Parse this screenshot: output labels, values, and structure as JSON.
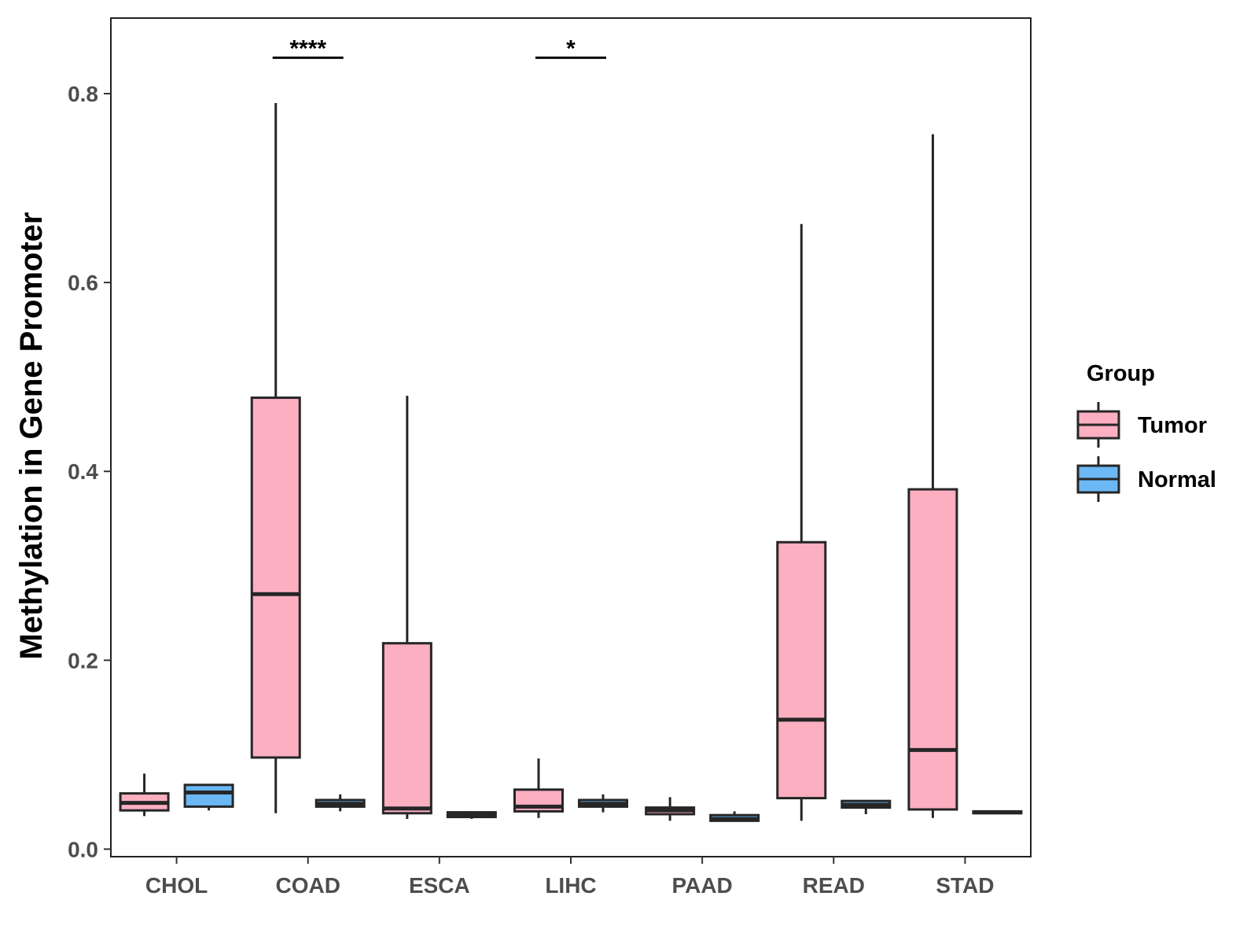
{
  "chart_data": {
    "type": "boxplot",
    "title": "",
    "xlabel": "",
    "ylabel": "Methylation in Gene Promoter",
    "ylim": [
      -0.008,
      0.88
    ],
    "yticks": [
      "0.0",
      "0.2",
      "0.4",
      "0.6",
      "0.8"
    ],
    "ytick_values": [
      0.0,
      0.2,
      0.4,
      0.6,
      0.8
    ],
    "categories": [
      "CHOL",
      "COAD",
      "ESCA",
      "LIHC",
      "PAAD",
      "READ",
      "STAD"
    ],
    "legend": {
      "title": "Group",
      "position": "right",
      "entries": [
        {
          "name": "Tumor",
          "color": "#fbafc1"
        },
        {
          "name": "Normal",
          "color": "#6bb8f5"
        }
      ]
    },
    "series": [
      {
        "name": "Tumor",
        "color": "#fbafc1",
        "boxes": [
          {
            "category": "CHOL",
            "min": 0.035,
            "q1": 0.041,
            "median": 0.049,
            "q3": 0.059,
            "max": 0.08
          },
          {
            "category": "COAD",
            "min": 0.038,
            "q1": 0.097,
            "median": 0.27,
            "q3": 0.478,
            "max": 0.79
          },
          {
            "category": "ESCA",
            "min": 0.032,
            "q1": 0.038,
            "median": 0.043,
            "q3": 0.218,
            "max": 0.48
          },
          {
            "category": "LIHC",
            "min": 0.033,
            "q1": 0.04,
            "median": 0.045,
            "q3": 0.063,
            "max": 0.096
          },
          {
            "category": "PAAD",
            "min": 0.03,
            "q1": 0.037,
            "median": 0.041,
            "q3": 0.044,
            "max": 0.055
          },
          {
            "category": "READ",
            "min": 0.03,
            "q1": 0.054,
            "median": 0.137,
            "q3": 0.325,
            "max": 0.662
          },
          {
            "category": "STAD",
            "min": 0.033,
            "q1": 0.042,
            "median": 0.105,
            "q3": 0.381,
            "max": 0.757
          }
        ]
      },
      {
        "name": "Normal",
        "color": "#6bb8f5",
        "boxes": [
          {
            "category": "CHOL",
            "min": 0.041,
            "q1": 0.045,
            "median": 0.06,
            "q3": 0.068,
            "max": 0.069
          },
          {
            "category": "COAD",
            "min": 0.04,
            "q1": 0.045,
            "median": 0.048,
            "q3": 0.052,
            "max": 0.058
          },
          {
            "category": "ESCA",
            "min": 0.032,
            "q1": 0.034,
            "median": 0.036,
            "q3": 0.039,
            "max": 0.04
          },
          {
            "category": "LIHC",
            "min": 0.039,
            "q1": 0.045,
            "median": 0.048,
            "q3": 0.052,
            "max": 0.058
          },
          {
            "category": "PAAD",
            "min": 0.029,
            "q1": 0.03,
            "median": 0.032,
            "q3": 0.036,
            "max": 0.04
          },
          {
            "category": "READ",
            "min": 0.037,
            "q1": 0.044,
            "median": 0.047,
            "q3": 0.051,
            "max": 0.052
          },
          {
            "category": "STAD",
            "min": 0.037,
            "q1": 0.038,
            "median": 0.039,
            "q3": 0.04,
            "max": 0.041
          }
        ]
      }
    ],
    "annotations": [
      {
        "category": "COAD",
        "label": "****",
        "y": 0.838
      },
      {
        "category": "LIHC",
        "label": "*",
        "y": 0.838
      }
    ],
    "grid": false
  }
}
